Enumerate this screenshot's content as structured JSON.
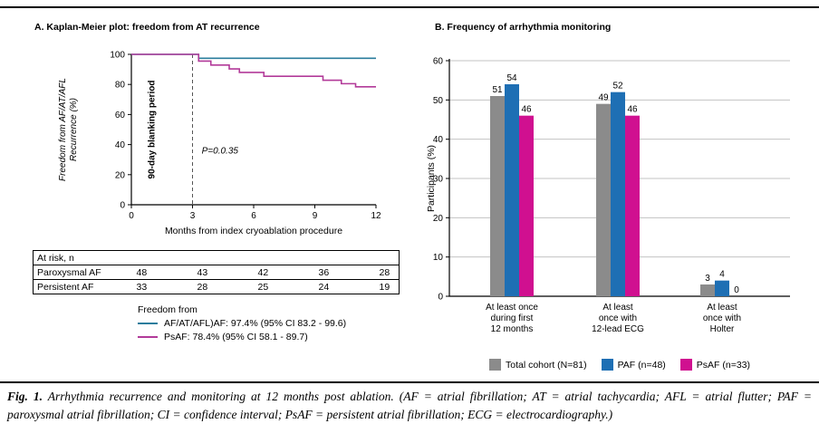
{
  "figure": {
    "caption_prefix": "Fig. 1.",
    "caption_text": "Arrhythmia recurrence and monitoring at 12 months post ablation. (AF = atrial fibrillation; AT = atrial tachycardia; AFL = atrial flutter; PAF = paroxysmal atrial fibrillation; CI = confidence interval; PsAF = persistent atrial fibrillation; ECG = electrocardiography.)"
  },
  "chart_data": [
    {
      "type": "line",
      "subtype": "kaplan-meier-step",
      "title": "A. Kaplan-Meier plot: freedom from AT recurrence",
      "ylabel_line1": "Freedom from AF/AT/AFL",
      "ylabel_line2": "Recurrence (%)",
      "xlabel": "Months from index cryoablation procedure",
      "xlim": [
        0,
        12
      ],
      "ylim": [
        0,
        100
      ],
      "x_ticks": [
        0,
        3,
        6,
        9,
        12
      ],
      "y_ticks": [
        0,
        20,
        40,
        60,
        80,
        100
      ],
      "blanking_line_x": 3,
      "blanking_label": "90-day blanking period",
      "p_value_label": "P=0.0.35",
      "legend_title": "Freedom from",
      "series": [
        {
          "name": "AF/AT/AFL)AF: 97.4% (95% CI 83.2 - 99.6)",
          "color": "#2b7d9d",
          "steps": [
            [
              0,
              100
            ],
            [
              3.3,
              97.4
            ],
            [
              12,
              97.4
            ]
          ]
        },
        {
          "name": "PsAF: 78.4% (95% CI  58.1 - 89.7)",
          "color": "#b23a99",
          "steps": [
            [
              0,
              100
            ],
            [
              3.3,
              95.5
            ],
            [
              3.9,
              92.9
            ],
            [
              4.8,
              90.3
            ],
            [
              5.3,
              88.0
            ],
            [
              6.5,
              85.4
            ],
            [
              9.4,
              82.8
            ],
            [
              10.3,
              80.5
            ],
            [
              11.0,
              78.4
            ],
            [
              12,
              78.4
            ]
          ]
        }
      ],
      "at_risk": {
        "header": "At risk, n",
        "rows": [
          {
            "label": "Paroxysmal AF",
            "values": [
              "48",
              "43",
              "42",
              "36",
              "28"
            ]
          },
          {
            "label": "Persistent AF",
            "values": [
              "33",
              "28",
              "25",
              "24",
              "19"
            ]
          }
        ]
      }
    },
    {
      "type": "bar",
      "title": "B. Frequency of arrhythmia monitoring",
      "ylabel": "Participants (%)",
      "ylim": [
        0,
        60
      ],
      "y_ticks": [
        0,
        10,
        20,
        30,
        40,
        50,
        60
      ],
      "grid": true,
      "legend_position": "bottom",
      "categories": [
        [
          "At least once",
          "during first",
          "12 months"
        ],
        [
          "At least",
          "once with",
          "12-lead ECG"
        ],
        [
          "At least",
          "once with",
          "Holter"
        ]
      ],
      "series": [
        {
          "name": "Total cohort (N=81)",
          "color": "#8b8b8b",
          "values": [
            51,
            49,
            3
          ]
        },
        {
          "name": "PAF (n=48)",
          "color": "#1e6fb4",
          "values": [
            54,
            52,
            4
          ]
        },
        {
          "name": "PsAF (n=33)",
          "color": "#d01090",
          "values": [
            46,
            46,
            0
          ]
        }
      ]
    }
  ]
}
